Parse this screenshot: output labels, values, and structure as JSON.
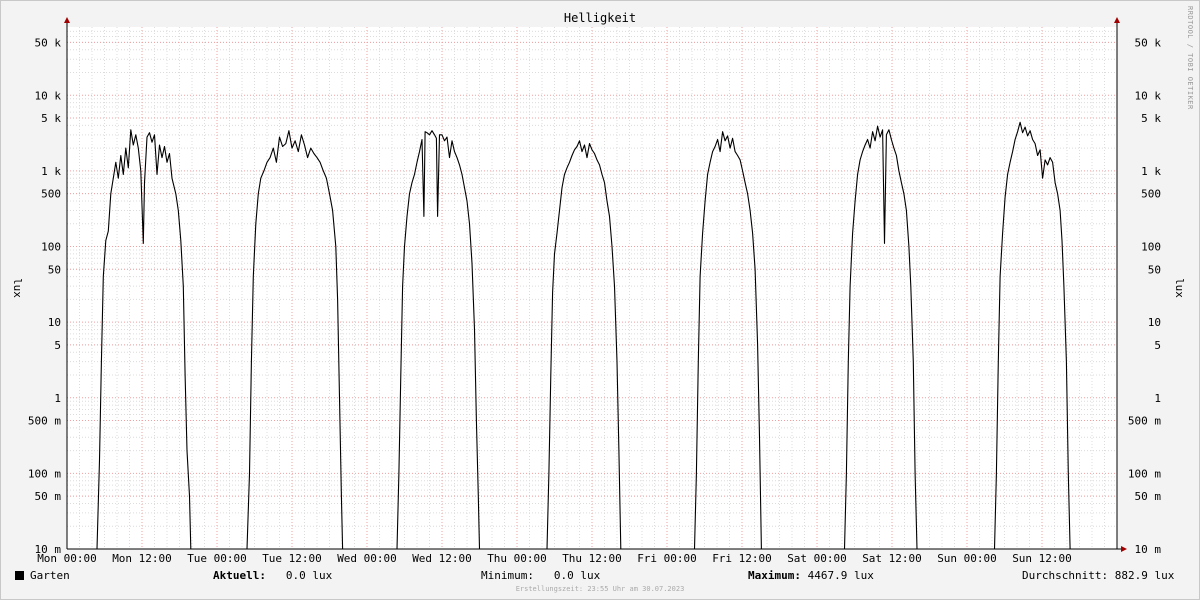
{
  "chart_data": {
    "type": "line",
    "title": "Helligkeit",
    "ylabel": "lux",
    "yscale": "log",
    "ylim": [
      0.01,
      80000
    ],
    "yticks": [
      {
        "value": 50000,
        "label": "50 k"
      },
      {
        "value": 10000,
        "label": "10 k"
      },
      {
        "value": 5000,
        "label": "5 k"
      },
      {
        "value": 1000,
        "label": "1 k"
      },
      {
        "value": 500,
        "label": "500"
      },
      {
        "value": 100,
        "label": "100"
      },
      {
        "value": 50,
        "label": "50"
      },
      {
        "value": 10,
        "label": "10"
      },
      {
        "value": 5,
        "label": "5"
      },
      {
        "value": 1,
        "label": "1"
      },
      {
        "value": 0.5,
        "label": "500 m"
      },
      {
        "value": 0.1,
        "label": "100 m"
      },
      {
        "value": 0.05,
        "label": "50 m"
      },
      {
        "value": 0.01,
        "label": "10 m"
      }
    ],
    "xlim": [
      0,
      168
    ],
    "xticks": [
      {
        "value": 0,
        "label": "Mon 00:00"
      },
      {
        "value": 12,
        "label": "Mon 12:00"
      },
      {
        "value": 24,
        "label": "Tue 00:00"
      },
      {
        "value": 36,
        "label": "Tue 12:00"
      },
      {
        "value": 48,
        "label": "Wed 00:00"
      },
      {
        "value": 60,
        "label": "Wed 12:00"
      },
      {
        "value": 72,
        "label": "Thu 00:00"
      },
      {
        "value": 84,
        "label": "Thu 12:00"
      },
      {
        "value": 96,
        "label": "Fri 00:00"
      },
      {
        "value": 108,
        "label": "Fri 12:00"
      },
      {
        "value": 120,
        "label": "Sat 00:00"
      },
      {
        "value": 132,
        "label": "Sat 12:00"
      },
      {
        "value": 144,
        "label": "Sun 00:00"
      },
      {
        "value": 156,
        "label": "Sun 12:00"
      }
    ],
    "grid": true,
    "series": [
      {
        "name": "Garten",
        "color": "#000000",
        "points": [
          [
            0,
            0.01
          ],
          [
            4.8,
            0.01
          ],
          [
            5.2,
            0.15
          ],
          [
            5.5,
            3
          ],
          [
            5.8,
            40
          ],
          [
            6.2,
            120
          ],
          [
            6.6,
            160
          ],
          [
            7,
            500
          ],
          [
            7.4,
            800
          ],
          [
            7.8,
            1300
          ],
          [
            8.2,
            800
          ],
          [
            8.6,
            1600
          ],
          [
            9,
            900
          ],
          [
            9.4,
            2000
          ],
          [
            9.8,
            1100
          ],
          [
            10.2,
            3500
          ],
          [
            10.6,
            2200
          ],
          [
            11,
            3000
          ],
          [
            11.4,
            2000
          ],
          [
            11.8,
            1000
          ],
          [
            12.2,
            110
          ],
          [
            12.4,
            700
          ],
          [
            12.8,
            2800
          ],
          [
            13.2,
            3200
          ],
          [
            13.6,
            2400
          ],
          [
            14,
            3000
          ],
          [
            14.4,
            900
          ],
          [
            14.8,
            2200
          ],
          [
            15.2,
            1500
          ],
          [
            15.6,
            2100
          ],
          [
            16,
            1300
          ],
          [
            16.4,
            1700
          ],
          [
            16.8,
            800
          ],
          [
            17.4,
            500
          ],
          [
            17.8,
            300
          ],
          [
            18.2,
            120
          ],
          [
            18.6,
            30
          ],
          [
            18.9,
            2
          ],
          [
            19.2,
            0.2
          ],
          [
            19.6,
            0.05
          ],
          [
            19.8,
            0.01
          ],
          [
            24,
            0.01
          ],
          [
            28.8,
            0.01
          ],
          [
            29.2,
            0.1
          ],
          [
            29.5,
            3
          ],
          [
            29.8,
            40
          ],
          [
            30.2,
            200
          ],
          [
            30.6,
            500
          ],
          [
            31,
            800
          ],
          [
            31.5,
            1000
          ],
          [
            32,
            1300
          ],
          [
            32.5,
            1500
          ],
          [
            33,
            2000
          ],
          [
            33.5,
            1300
          ],
          [
            34,
            2800
          ],
          [
            34.5,
            2100
          ],
          [
            35,
            2300
          ],
          [
            35.5,
            3400
          ],
          [
            36,
            2000
          ],
          [
            36.5,
            2500
          ],
          [
            37,
            1800
          ],
          [
            37.5,
            3000
          ],
          [
            38,
            2200
          ],
          [
            38.5,
            1500
          ],
          [
            39,
            2000
          ],
          [
            39.5,
            1700
          ],
          [
            40,
            1500
          ],
          [
            40.5,
            1300
          ],
          [
            41,
            1000
          ],
          [
            41.5,
            800
          ],
          [
            42,
            500
          ],
          [
            42.5,
            300
          ],
          [
            43,
            100
          ],
          [
            43.3,
            20
          ],
          [
            43.6,
            1
          ],
          [
            43.9,
            0.05
          ],
          [
            44.1,
            0.01
          ],
          [
            48,
            0.01
          ],
          [
            52.8,
            0.01
          ],
          [
            53.1,
            0.1
          ],
          [
            53.4,
            2
          ],
          [
            53.7,
            30
          ],
          [
            54,
            100
          ],
          [
            54.4,
            250
          ],
          [
            54.8,
            500
          ],
          [
            55.2,
            700
          ],
          [
            55.6,
            900
          ],
          [
            56,
            1300
          ],
          [
            56.4,
            1800
          ],
          [
            56.8,
            2600
          ],
          [
            57.1,
            250
          ],
          [
            57.3,
            3300
          ],
          [
            57.6,
            3200
          ],
          [
            58,
            3000
          ],
          [
            58.4,
            3400
          ],
          [
            58.8,
            3000
          ],
          [
            59.1,
            2700
          ],
          [
            59.3,
            250
          ],
          [
            59.6,
            3000
          ],
          [
            60,
            3000
          ],
          [
            60.4,
            2500
          ],
          [
            60.8,
            2800
          ],
          [
            61.2,
            1500
          ],
          [
            61.6,
            2500
          ],
          [
            62,
            1800
          ],
          [
            62.4,
            1500
          ],
          [
            62.8,
            1200
          ],
          [
            63.2,
            900
          ],
          [
            63.6,
            600
          ],
          [
            64,
            400
          ],
          [
            64.4,
            200
          ],
          [
            64.8,
            60
          ],
          [
            65.2,
            8
          ],
          [
            65.5,
            0.5
          ],
          [
            65.8,
            0.05
          ],
          [
            66,
            0.01
          ],
          [
            72,
            0.01
          ],
          [
            76.8,
            0.01
          ],
          [
            77.1,
            0.1
          ],
          [
            77.4,
            2
          ],
          [
            77.7,
            25
          ],
          [
            78,
            80
          ],
          [
            78.4,
            150
          ],
          [
            78.8,
            300
          ],
          [
            79.2,
            600
          ],
          [
            79.6,
            900
          ],
          [
            80,
            1100
          ],
          [
            80.4,
            1300
          ],
          [
            80.8,
            1600
          ],
          [
            81.2,
            1900
          ],
          [
            81.6,
            2100
          ],
          [
            82,
            2500
          ],
          [
            82.4,
            1800
          ],
          [
            82.8,
            2200
          ],
          [
            83.2,
            1500
          ],
          [
            83.6,
            2300
          ],
          [
            84,
            1900
          ],
          [
            84.4,
            1700
          ],
          [
            84.8,
            1400
          ],
          [
            85.2,
            1200
          ],
          [
            85.6,
            900
          ],
          [
            86,
            700
          ],
          [
            86.4,
            400
          ],
          [
            86.8,
            250
          ],
          [
            87.2,
            100
          ],
          [
            87.6,
            30
          ],
          [
            88,
            3
          ],
          [
            88.3,
            0.2
          ],
          [
            88.6,
            0.01
          ],
          [
            96,
            0.01
          ],
          [
            100.4,
            0.01
          ],
          [
            100.7,
            0.1
          ],
          [
            101,
            3
          ],
          [
            101.3,
            40
          ],
          [
            101.7,
            150
          ],
          [
            102.1,
            400
          ],
          [
            102.5,
            900
          ],
          [
            102.9,
            1300
          ],
          [
            103.3,
            1800
          ],
          [
            103.7,
            2100
          ],
          [
            104.1,
            2600
          ],
          [
            104.5,
            1800
          ],
          [
            104.9,
            3300
          ],
          [
            105.3,
            2500
          ],
          [
            105.7,
            2900
          ],
          [
            106.1,
            2000
          ],
          [
            106.5,
            2700
          ],
          [
            106.9,
            1800
          ],
          [
            107.3,
            1600
          ],
          [
            107.7,
            1400
          ],
          [
            108.1,
            1000
          ],
          [
            108.5,
            700
          ],
          [
            108.9,
            500
          ],
          [
            109.3,
            300
          ],
          [
            109.7,
            150
          ],
          [
            110.1,
            50
          ],
          [
            110.5,
            5
          ],
          [
            110.8,
            0.3
          ],
          [
            111.1,
            0.01
          ],
          [
            120,
            0.01
          ],
          [
            124.4,
            0.01
          ],
          [
            124.7,
            0.1
          ],
          [
            125,
            3
          ],
          [
            125.3,
            30
          ],
          [
            125.7,
            150
          ],
          [
            126.1,
            400
          ],
          [
            126.5,
            900
          ],
          [
            126.9,
            1400
          ],
          [
            127.3,
            1800
          ],
          [
            127.7,
            2200
          ],
          [
            128.1,
            2600
          ],
          [
            128.5,
            2000
          ],
          [
            128.9,
            3300
          ],
          [
            129.3,
            2500
          ],
          [
            129.7,
            3900
          ],
          [
            130.1,
            2800
          ],
          [
            130.5,
            3500
          ],
          [
            130.8,
            110
          ],
          [
            131.1,
            3000
          ],
          [
            131.5,
            3500
          ],
          [
            131.9,
            2600
          ],
          [
            132.3,
            2000
          ],
          [
            132.7,
            1600
          ],
          [
            133.1,
            1000
          ],
          [
            133.5,
            700
          ],
          [
            133.9,
            500
          ],
          [
            134.3,
            300
          ],
          [
            134.7,
            100
          ],
          [
            135,
            30
          ],
          [
            135.4,
            3
          ],
          [
            135.7,
            0.1
          ],
          [
            136,
            0.01
          ],
          [
            144,
            0.01
          ],
          [
            148.4,
            0.01
          ],
          [
            148.7,
            0.1
          ],
          [
            149,
            3
          ],
          [
            149.3,
            40
          ],
          [
            149.7,
            150
          ],
          [
            150.1,
            450
          ],
          [
            150.5,
            900
          ],
          [
            150.9,
            1300
          ],
          [
            151.3,
            1800
          ],
          [
            151.7,
            2600
          ],
          [
            152.1,
            3300
          ],
          [
            152.5,
            4400
          ],
          [
            152.9,
            3200
          ],
          [
            153.3,
            3800
          ],
          [
            153.7,
            2900
          ],
          [
            154.1,
            3400
          ],
          [
            154.5,
            2600
          ],
          [
            154.9,
            2300
          ],
          [
            155.3,
            1600
          ],
          [
            155.7,
            1900
          ],
          [
            156.1,
            800
          ],
          [
            156.5,
            1400
          ],
          [
            156.9,
            1200
          ],
          [
            157.3,
            1500
          ],
          [
            157.7,
            1300
          ],
          [
            158.1,
            700
          ],
          [
            158.5,
            500
          ],
          [
            158.9,
            300
          ],
          [
            159.2,
            120
          ],
          [
            159.5,
            30
          ],
          [
            159.9,
            3
          ],
          [
            160.2,
            0.1
          ],
          [
            160.5,
            0.01
          ],
          [
            168,
            0.01
          ]
        ]
      }
    ]
  },
  "legend": {
    "series_label": "Garten",
    "current_label": "Aktuell:",
    "current_value": "0.0 lux",
    "min_label": "Minimum:",
    "min_value": "0.0 lux",
    "max_label": "Maximum:",
    "max_value": "4467.9 lux",
    "avg_label": "Durchschnitt:",
    "avg_value": "882.9 lux"
  },
  "footer": "Erstellungszeit: 23:55 Uhr am 30.07.2023",
  "watermark": "RRDTOOL / TOBI OETIKER"
}
